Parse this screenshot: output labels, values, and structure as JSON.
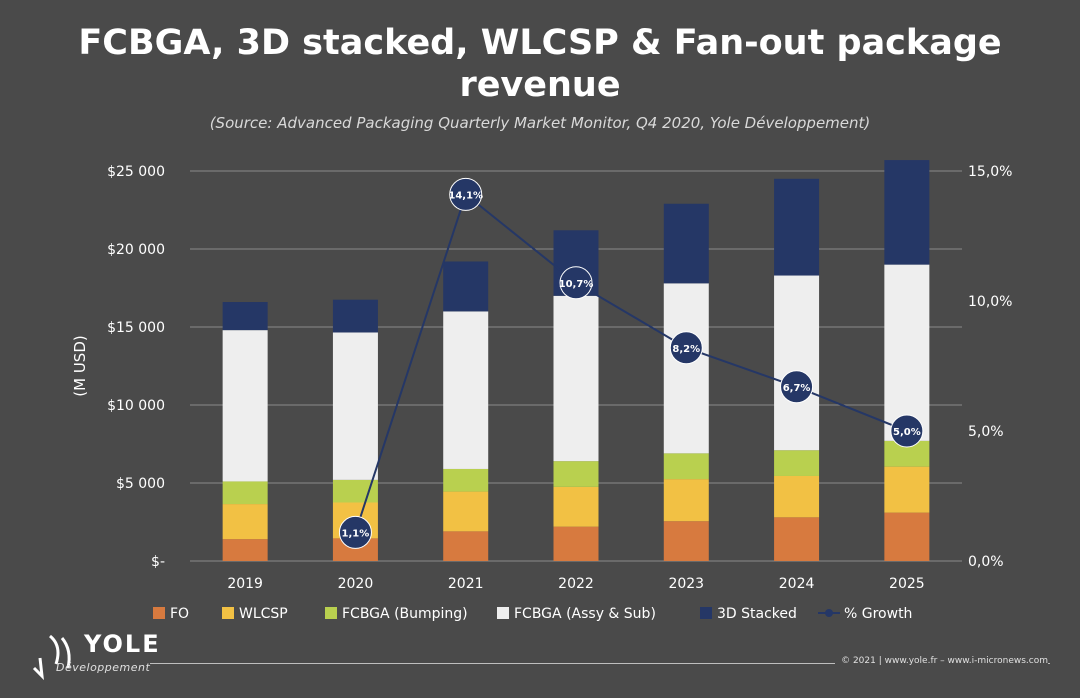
{
  "title_line1": "FCBGA, 3D stacked, WLCSP & Fan-out package",
  "title_line2": "revenue",
  "subtitle": "(Source: Advanced Packaging Quarterly Market Monitor, Q4 2020, Yole Développement)",
  "footer": "© 2021 | www.yole.fr – www.i-micronews.com",
  "logo": {
    "name": "YOLE",
    "subtitle": "Développement"
  },
  "chart_data": {
    "type": "bar",
    "stacked": true,
    "categories": [
      "2019",
      "2020",
      "2021",
      "2022",
      "2023",
      "2024",
      "2025"
    ],
    "ylabel": "(M USD)",
    "ylim": [
      0,
      25000
    ],
    "y_ticks": [
      "$-",
      "$5 000",
      "$10 000",
      "$15 000",
      "$20 000",
      "$25 000"
    ],
    "y2lim": [
      0,
      15
    ],
    "y2_ticks": [
      "0,0%",
      "5,0%",
      "10,0%",
      "15,0%"
    ],
    "grid": true,
    "legend_position": "bottom",
    "series": [
      {
        "name": "FO",
        "color": "#d77a3f",
        "values": [
          1400,
          1450,
          1900,
          2200,
          2550,
          2800,
          3100
        ]
      },
      {
        "name": "WLCSP",
        "color": "#f2c144",
        "values": [
          2250,
          2300,
          2550,
          2550,
          2700,
          2650,
          2950
        ]
      },
      {
        "name": "FCBGA (Bumping)",
        "color": "#b9d04f",
        "values": [
          1450,
          1450,
          1450,
          1650,
          1650,
          1650,
          1650
        ]
      },
      {
        "name": "FCBGA (Assy & Sub)",
        "color": "#eeeeee",
        "values": [
          9700,
          9450,
          10100,
          10600,
          10900,
          11200,
          11300
        ]
      },
      {
        "name": "3D Stacked",
        "color": "#253766",
        "values": [
          1800,
          2100,
          3200,
          4200,
          5100,
          6200,
          6700
        ]
      }
    ],
    "line_series": {
      "name": "% Growth",
      "color": "#253766",
      "axis": "right",
      "values": [
        null,
        1.1,
        14.1,
        10.7,
        8.2,
        6.7,
        5.0
      ],
      "labels": [
        null,
        "1,1%",
        "14,1%",
        "10,7%",
        "8,2%",
        "6,7%",
        "5,0%"
      ]
    }
  }
}
